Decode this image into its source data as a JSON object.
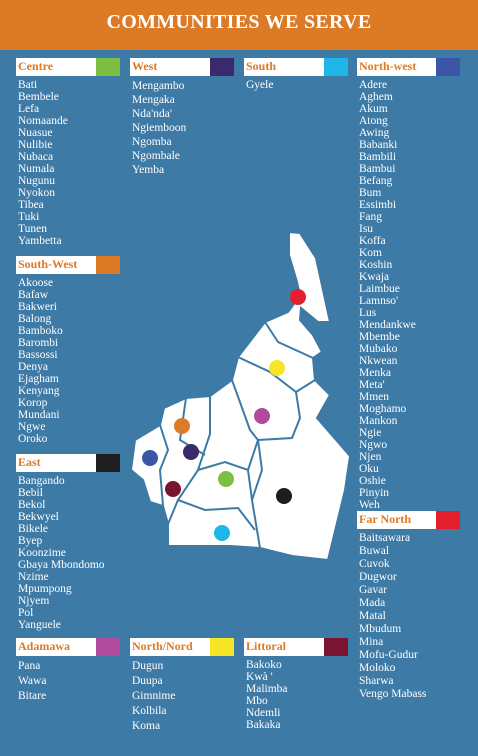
{
  "title": "COMMUNITIES WE SERVE",
  "colors": {
    "header": "#dc7a26",
    "background": "#3d7aa6",
    "label_text": "#dc7a26",
    "map_fill": "#ffffff",
    "map_border": "#3d7aa6"
  },
  "regions": [
    {
      "id": "centre",
      "name": "Centre",
      "swatch": "#7bc043",
      "communities": [
        "Bati",
        "Bembele",
        "Lefa",
        "Nomaande",
        "Nuasue",
        "Nulibie",
        "Nubaca",
        "Numala",
        "Nugunu",
        "Nyokon",
        "Tibea",
        "Tuki",
        "Tunen",
        "Yambetta"
      ]
    },
    {
      "id": "west",
      "name": "West",
      "swatch": "#3a2a6b",
      "communities": [
        "Mengambo",
        "Mengaka",
        "Nda'nda'",
        "Ngiemboon",
        "Ngomba",
        "Ngombale",
        "Yemba"
      ]
    },
    {
      "id": "south",
      "name": "South",
      "swatch": "#1fb6ea",
      "communities": [
        "Gyele"
      ]
    },
    {
      "id": "north-west",
      "name": "North-west",
      "swatch": "#3b56a6",
      "communities": [
        "Adere",
        "Aghem",
        "Akum",
        "Atong",
        "Awing",
        "Babanki",
        "Bambili",
        "Bambui",
        "Befang",
        "Bum",
        "Essimbi",
        "Fang",
        "Isu",
        "Koffa",
        "Kom",
        "Koshin",
        "Kwaja",
        "Laimbue",
        "Lamnso'",
        "Lus",
        "Mendankwe",
        "Mbembe",
        "Mubako",
        "Nkwean",
        "Menka",
        "Meta'",
        "Mmen",
        "Moghamo",
        "Mankon",
        "Ngie",
        "Ngwo",
        "Njen",
        "Oku",
        "Oshie",
        "Pinyin",
        "Weh"
      ]
    },
    {
      "id": "south-west",
      "name": "South-West",
      "swatch": "#dc7a26",
      "communities": [
        "Akoose",
        "Bafaw",
        "Bakweri",
        "Balong",
        "Bamboko",
        "Barombi",
        "Bassossi",
        "Denya",
        "Ejagham",
        "Kenyang",
        "Korop",
        "Mundani",
        "Ngwe",
        "Oroko"
      ]
    },
    {
      "id": "east",
      "name": "East",
      "swatch": "#1e1e1e",
      "communities": [
        "Bangando",
        "Bebil",
        "Bekol",
        "Bekwyel",
        "Bikele",
        "Byep",
        "Koonzime",
        "Gbaya Mbondomo",
        "Nzime",
        "Mpumpong",
        "Njyem",
        "Pol",
        "Yanguele"
      ]
    },
    {
      "id": "far-north",
      "name": "Far North",
      "swatch": "#e4202e",
      "communities": [
        "Baitsawara",
        "Buwal",
        "Cuvok",
        "Dugwor",
        "Gavar",
        "Mada",
        "Matal",
        "Mbudum",
        "Mina",
        "Mofu-Gudur",
        "Moloko",
        "Sharwa",
        "Vengo Mabass"
      ]
    },
    {
      "id": "adamawa",
      "name": "Adamawa",
      "swatch": "#b04a9c",
      "communities": [
        "Pana",
        "Wawa",
        "Bitare"
      ]
    },
    {
      "id": "north",
      "name": "North/Nord",
      "swatch": "#f6e626",
      "communities": [
        "Dugun",
        "Duupa",
        "Gimnime",
        "Kolbila",
        "Koma"
      ]
    },
    {
      "id": "littoral",
      "name": "Littoral",
      "swatch": "#7a1430",
      "communities": [
        "Bakoko",
        "Kwà '",
        "Malimba",
        "Mbo",
        "Ndemli",
        "Bakaka"
      ]
    }
  ],
  "map_dots": [
    {
      "region": "far-north",
      "color": "#e4202e"
    },
    {
      "region": "north",
      "color": "#f6e626"
    },
    {
      "region": "adamawa",
      "color": "#b04a9c"
    },
    {
      "region": "north-west",
      "color": "#3b56a6"
    },
    {
      "region": "south-west",
      "color": "#dc7a26"
    },
    {
      "region": "west",
      "color": "#3a2a6b"
    },
    {
      "region": "littoral",
      "color": "#7a1430"
    },
    {
      "region": "centre",
      "color": "#7bc043"
    },
    {
      "region": "east",
      "color": "#1e1e1e"
    },
    {
      "region": "south",
      "color": "#1fb6ea"
    }
  ]
}
